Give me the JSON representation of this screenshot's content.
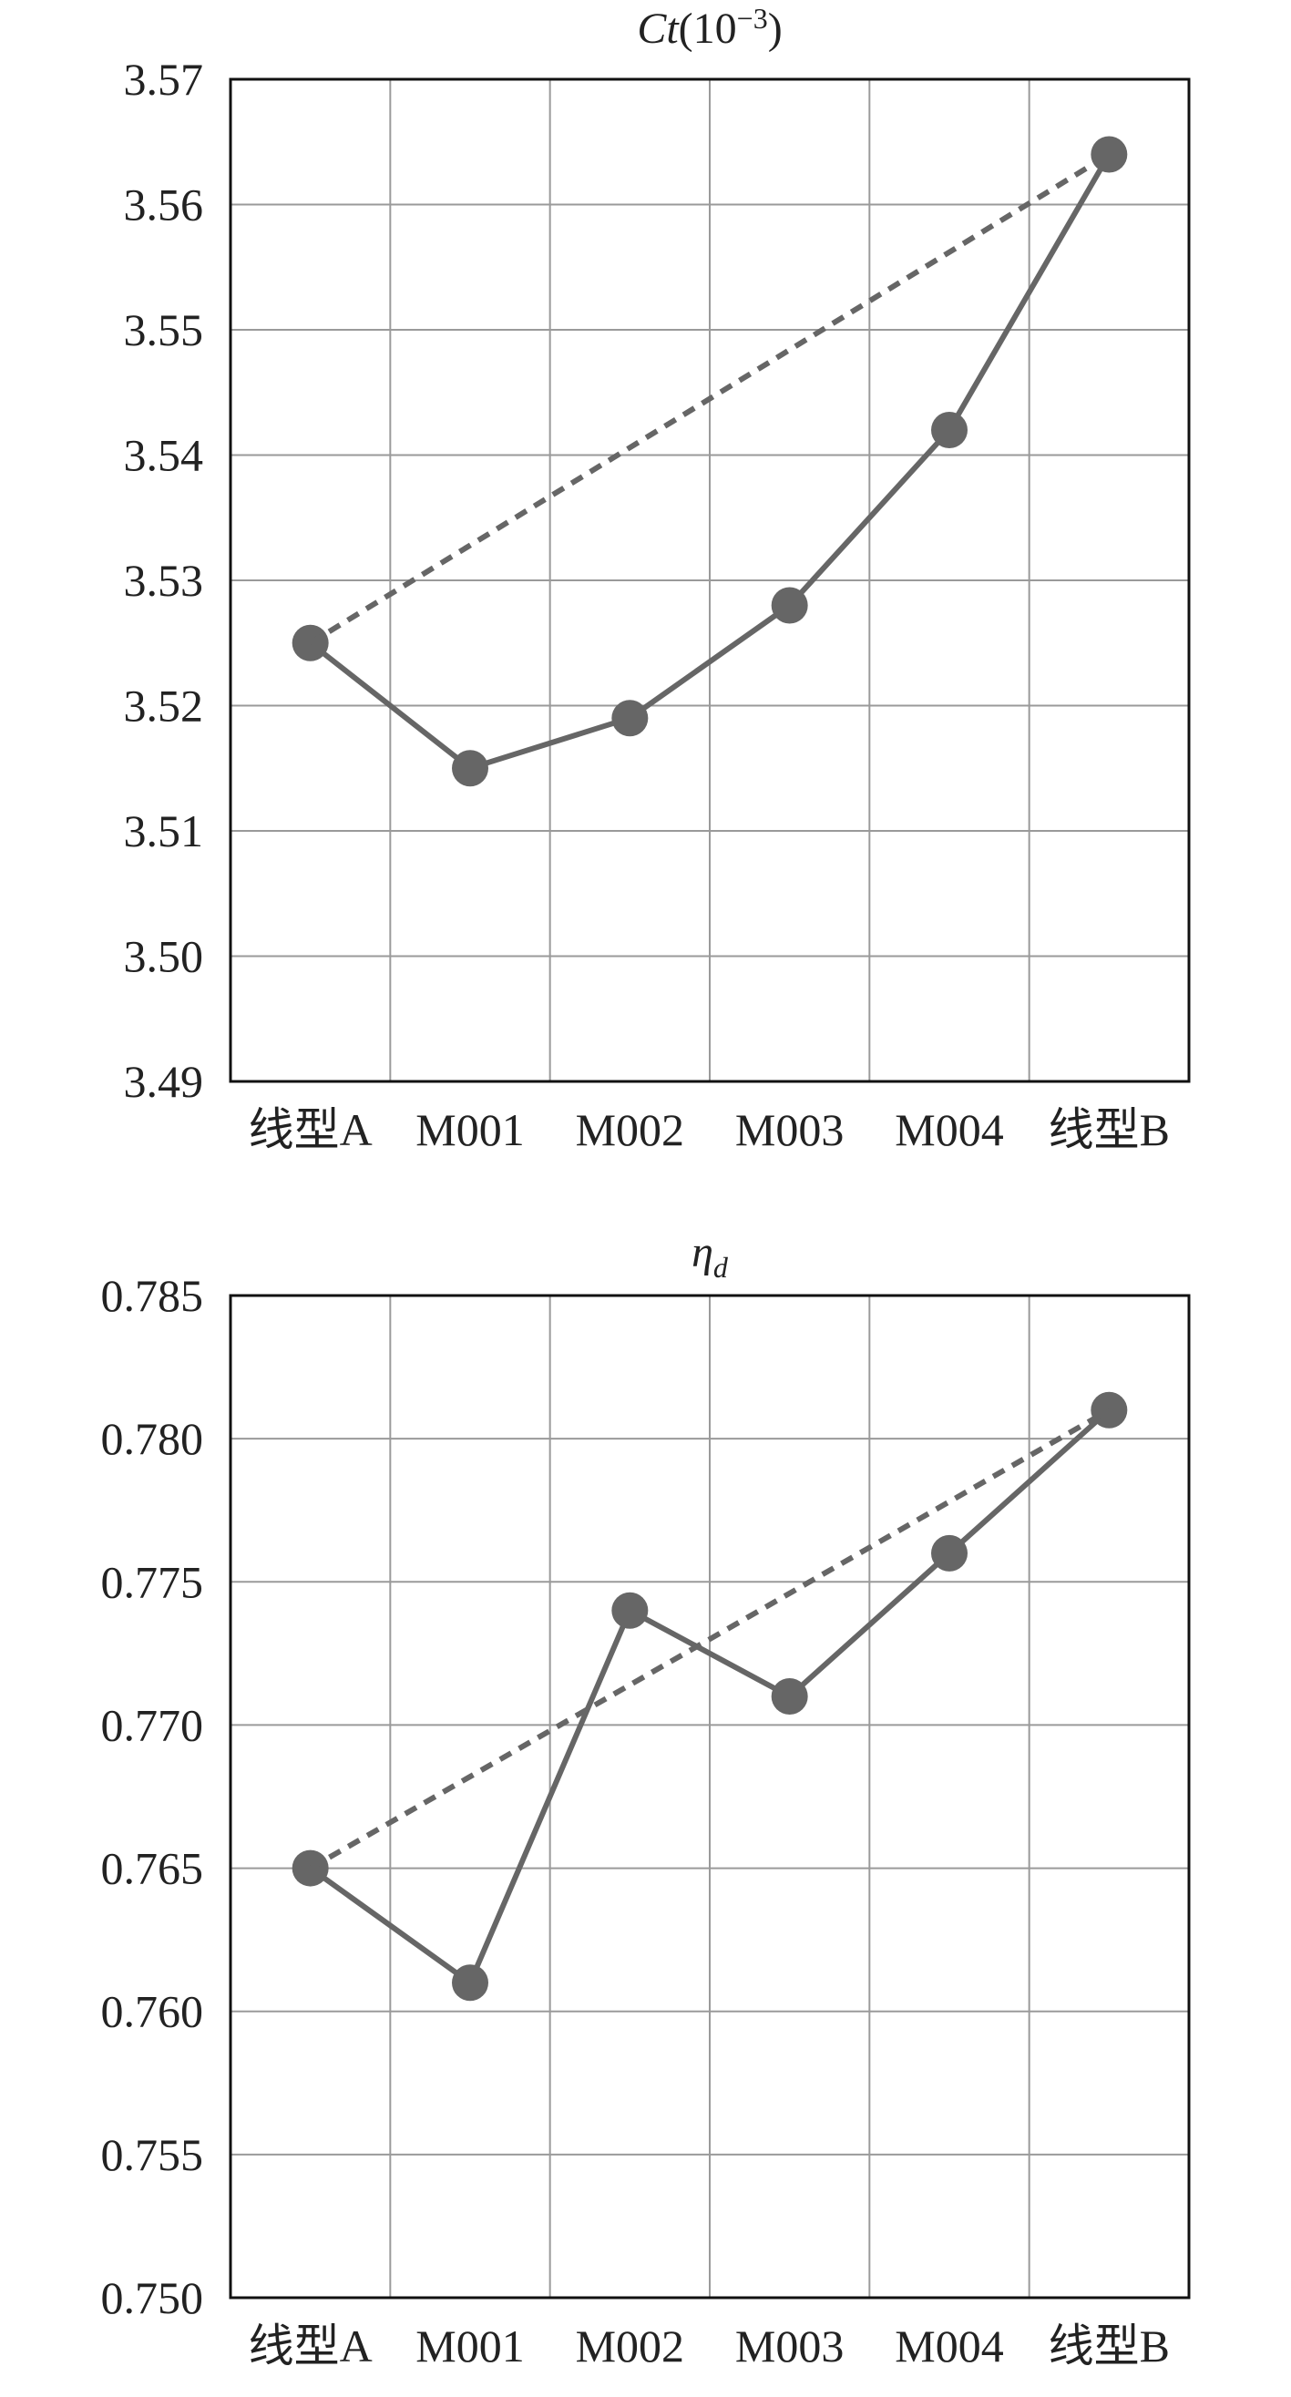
{
  "chart_data": [
    {
      "type": "line",
      "title": "Ct(10⁻³)",
      "title_parts": {
        "main": "Ct",
        "open": "(10",
        "sup": "−3",
        "close": ")"
      },
      "xlabel": "",
      "ylabel": "",
      "categories": [
        "线型A",
        "M001",
        "M002",
        "M003",
        "M004",
        "线型B"
      ],
      "series": [
        {
          "values": [
            3.525,
            3.515,
            3.519,
            3.528,
            3.542,
            3.564
          ],
          "style": "solid",
          "marker": "circle"
        },
        {
          "values": [
            3.525,
            null,
            null,
            null,
            null,
            3.564
          ],
          "style": "dashed",
          "marker": "none"
        }
      ],
      "ylim": [
        3.49,
        3.57
      ],
      "yticks": [
        3.49,
        3.5,
        3.51,
        3.52,
        3.53,
        3.54,
        3.55,
        3.56,
        3.57
      ],
      "ytick_labels": [
        "3.49",
        "3.50",
        "3.51",
        "3.52",
        "3.53",
        "3.54",
        "3.55",
        "3.56",
        "3.57"
      ],
      "grid": true,
      "legend": "none"
    },
    {
      "type": "line",
      "title": "ηd",
      "title_parts": {
        "main": "η",
        "sub": "d"
      },
      "xlabel": "",
      "ylabel": "",
      "categories": [
        "线型A",
        "M001",
        "M002",
        "M003",
        "M004",
        "线型B"
      ],
      "series": [
        {
          "values": [
            0.765,
            0.761,
            0.774,
            0.771,
            0.776,
            0.781
          ],
          "style": "solid",
          "marker": "circle"
        },
        {
          "values": [
            0.765,
            null,
            null,
            null,
            null,
            0.781
          ],
          "style": "dashed",
          "marker": "none"
        }
      ],
      "ylim": [
        0.75,
        0.785
      ],
      "yticks": [
        0.75,
        0.755,
        0.76,
        0.765,
        0.77,
        0.775,
        0.78,
        0.785
      ],
      "ytick_labels": [
        "0.750",
        "0.755",
        "0.760",
        "0.765",
        "0.770",
        "0.775",
        "0.780",
        "0.785"
      ],
      "grid": true,
      "legend": "none"
    }
  ],
  "colors": {
    "line": "#666666",
    "marker": "#666666",
    "grid": "#9a9a9a",
    "axis": "#111111",
    "text": "#222222"
  }
}
